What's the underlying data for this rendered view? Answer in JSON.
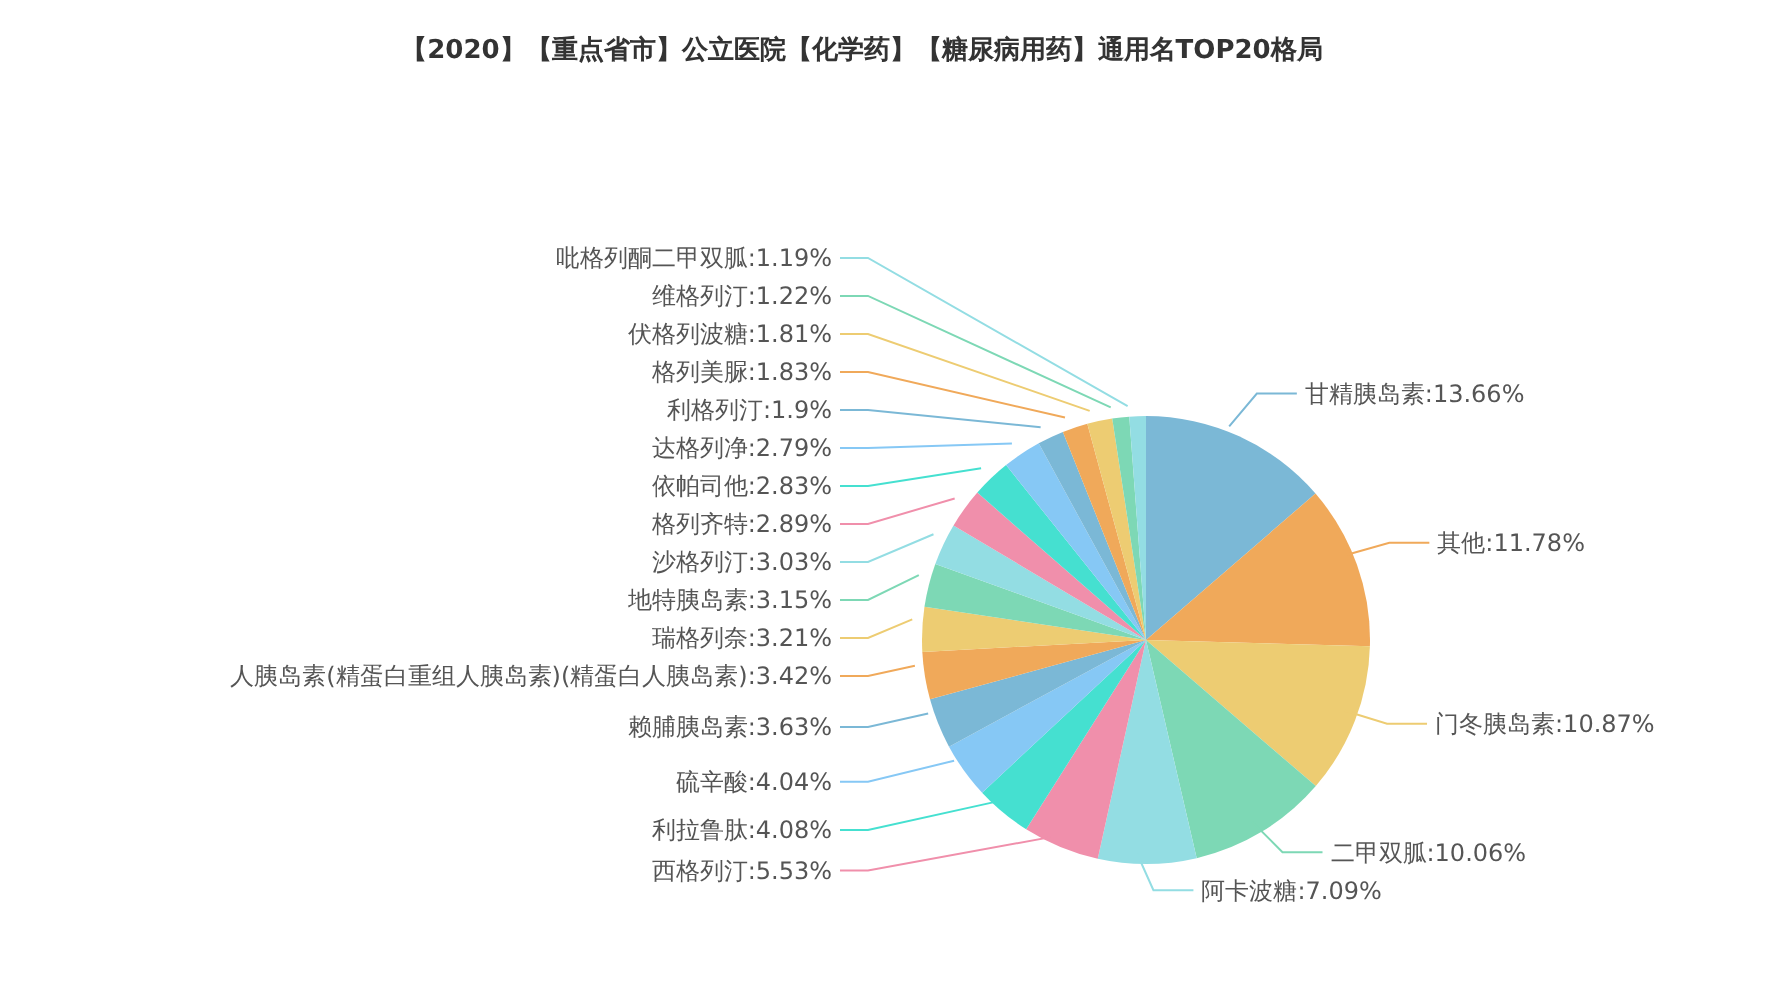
{
  "chart_data": {
    "type": "pie",
    "title": "【2020】【重点省市】公立医院【化学药】【糖尿病用药】通用名TOP20格局",
    "categories": [
      "甘精胰岛素",
      "其他",
      "门冬胰岛素",
      "二甲双胍",
      "阿卡波糖",
      "西格列汀",
      "利拉鲁肽",
      "硫辛酸",
      "赖脯胰岛素",
      "人胰岛素(精蛋白重组人胰岛素)(精蛋白人胰岛素)",
      "瑞格列奈",
      "地特胰岛素",
      "沙格列汀",
      "格列齐特",
      "依帕司他",
      "达格列净",
      "利格列汀",
      "格列美脲",
      "伏格列波糖",
      "维格列汀",
      "吡格列酮二甲双胍"
    ],
    "values": [
      13.66,
      11.78,
      10.87,
      10.06,
      7.09,
      5.53,
      4.08,
      4.04,
      3.63,
      3.42,
      3.21,
      3.15,
      3.03,
      2.89,
      2.83,
      2.79,
      1.9,
      1.83,
      1.81,
      1.22,
      1.19
    ],
    "value_labels": [
      "13.66%",
      "11.78%",
      "10.87%",
      "10.06%",
      "7.09%",
      "5.53%",
      "4.08%",
      "4.04%",
      "3.63%",
      "3.42%",
      "3.21%",
      "3.15%",
      "3.03%",
      "2.89%",
      "2.83%",
      "2.79%",
      "1.9%",
      "1.83%",
      "1.81%",
      "1.22%",
      "1.19%"
    ],
    "colors": [
      "#7bb8d6",
      "#f0a95a",
      "#edcc72",
      "#7dd8b5",
      "#93dde3",
      "#f08fab",
      "#45e0d0",
      "#86c8f5",
      "#7bb8d6",
      "#f0a95a",
      "#edcc72",
      "#7dd8b5",
      "#93dde3",
      "#f08fab",
      "#45e0d0",
      "#86c8f5",
      "#7bb8d6",
      "#f0a95a",
      "#edcc72",
      "#7dd8b5",
      "#93dde3"
    ]
  }
}
